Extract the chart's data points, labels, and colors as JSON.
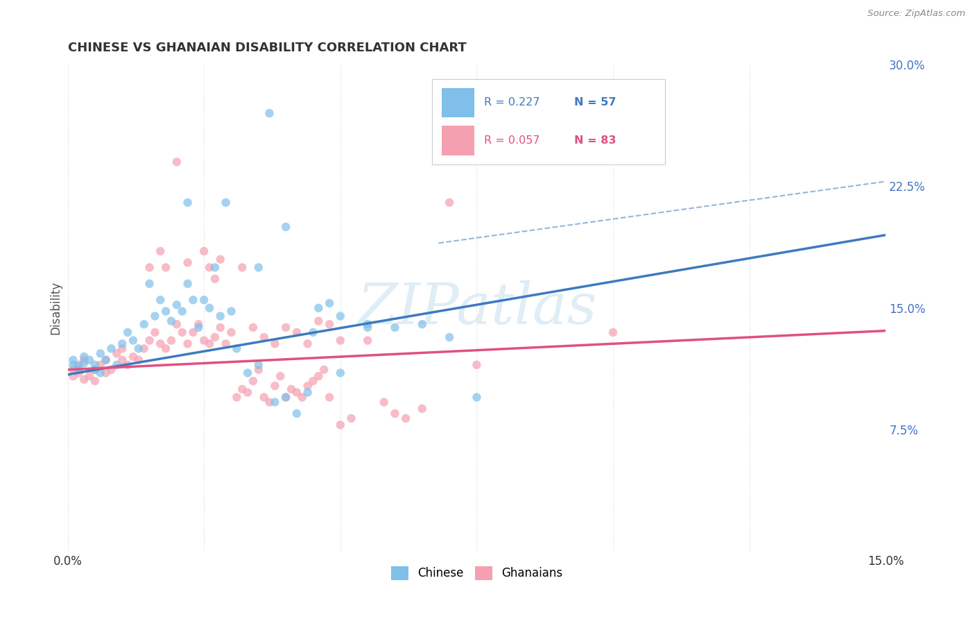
{
  "title": "CHINESE VS GHANAIAN DISABILITY CORRELATION CHART",
  "source": "Source: ZipAtlas.com",
  "ylabel": "Disability",
  "xlim": [
    0.0,
    0.15
  ],
  "ylim": [
    0.0,
    0.3
  ],
  "ytick_vals": [
    0.075,
    0.15,
    0.225,
    0.3
  ],
  "ytick_labels": [
    "7.5%",
    "15.0%",
    "22.5%",
    "30.0%"
  ],
  "xtick_vals": [
    0.0,
    0.025,
    0.05,
    0.075,
    0.1,
    0.125,
    0.15
  ],
  "xtick_labels": [
    "0.0%",
    "",
    "",
    "",
    "",
    "",
    "15.0%"
  ],
  "legend_R_chinese": "R = 0.227",
  "legend_N_chinese": "N = 57",
  "legend_R_ghanaian": "R = 0.057",
  "legend_N_ghanaian": "N = 83",
  "chinese_color": "#7fbfea",
  "ghanaian_color": "#f4a0b0",
  "chinese_line_color": "#3d7abf",
  "ghanaian_line_color": "#e05080",
  "chinese_scatter": [
    [
      0.001,
      0.115
    ],
    [
      0.001,
      0.118
    ],
    [
      0.002,
      0.114
    ],
    [
      0.002,
      0.112
    ],
    [
      0.003,
      0.116
    ],
    [
      0.003,
      0.12
    ],
    [
      0.004,
      0.118
    ],
    [
      0.005,
      0.115
    ],
    [
      0.005,
      0.112
    ],
    [
      0.006,
      0.122
    ],
    [
      0.006,
      0.11
    ],
    [
      0.007,
      0.118
    ],
    [
      0.008,
      0.125
    ],
    [
      0.009,
      0.115
    ],
    [
      0.01,
      0.128
    ],
    [
      0.011,
      0.135
    ],
    [
      0.012,
      0.13
    ],
    [
      0.013,
      0.125
    ],
    [
      0.014,
      0.14
    ],
    [
      0.015,
      0.165
    ],
    [
      0.016,
      0.145
    ],
    [
      0.017,
      0.155
    ],
    [
      0.018,
      0.148
    ],
    [
      0.019,
      0.142
    ],
    [
      0.02,
      0.152
    ],
    [
      0.021,
      0.148
    ],
    [
      0.022,
      0.165
    ],
    [
      0.022,
      0.215
    ],
    [
      0.023,
      0.155
    ],
    [
      0.024,
      0.138
    ],
    [
      0.025,
      0.155
    ],
    [
      0.026,
      0.15
    ],
    [
      0.027,
      0.175
    ],
    [
      0.028,
      0.145
    ],
    [
      0.029,
      0.215
    ],
    [
      0.03,
      0.148
    ],
    [
      0.031,
      0.125
    ],
    [
      0.033,
      0.11
    ],
    [
      0.035,
      0.115
    ],
    [
      0.037,
      0.27
    ],
    [
      0.038,
      0.092
    ],
    [
      0.04,
      0.095
    ],
    [
      0.042,
      0.085
    ],
    [
      0.044,
      0.098
    ],
    [
      0.046,
      0.15
    ],
    [
      0.048,
      0.153
    ],
    [
      0.05,
      0.11
    ],
    [
      0.055,
      0.138
    ],
    [
      0.06,
      0.138
    ],
    [
      0.065,
      0.14
    ],
    [
      0.07,
      0.132
    ],
    [
      0.075,
      0.095
    ],
    [
      0.035,
      0.175
    ],
    [
      0.04,
      0.2
    ],
    [
      0.045,
      0.135
    ],
    [
      0.05,
      0.145
    ],
    [
      0.055,
      0.14
    ]
  ],
  "ghanaian_scatter": [
    [
      0.001,
      0.112
    ],
    [
      0.001,
      0.108
    ],
    [
      0.002,
      0.115
    ],
    [
      0.002,
      0.11
    ],
    [
      0.003,
      0.106
    ],
    [
      0.003,
      0.118
    ],
    [
      0.004,
      0.108
    ],
    [
      0.005,
      0.112
    ],
    [
      0.005,
      0.105
    ],
    [
      0.006,
      0.115
    ],
    [
      0.007,
      0.118
    ],
    [
      0.007,
      0.11
    ],
    [
      0.008,
      0.112
    ],
    [
      0.009,
      0.122
    ],
    [
      0.01,
      0.118
    ],
    [
      0.01,
      0.125
    ],
    [
      0.011,
      0.115
    ],
    [
      0.012,
      0.12
    ],
    [
      0.013,
      0.118
    ],
    [
      0.014,
      0.125
    ],
    [
      0.015,
      0.13
    ],
    [
      0.016,
      0.135
    ],
    [
      0.017,
      0.128
    ],
    [
      0.018,
      0.125
    ],
    [
      0.018,
      0.175
    ],
    [
      0.019,
      0.13
    ],
    [
      0.02,
      0.14
    ],
    [
      0.02,
      0.24
    ],
    [
      0.021,
      0.135
    ],
    [
      0.022,
      0.128
    ],
    [
      0.022,
      0.178
    ],
    [
      0.023,
      0.135
    ],
    [
      0.024,
      0.14
    ],
    [
      0.025,
      0.13
    ],
    [
      0.025,
      0.185
    ],
    [
      0.026,
      0.128
    ],
    [
      0.026,
      0.175
    ],
    [
      0.027,
      0.132
    ],
    [
      0.027,
      0.168
    ],
    [
      0.028,
      0.138
    ],
    [
      0.028,
      0.18
    ],
    [
      0.029,
      0.128
    ],
    [
      0.03,
      0.135
    ],
    [
      0.031,
      0.095
    ],
    [
      0.032,
      0.1
    ],
    [
      0.032,
      0.175
    ],
    [
      0.033,
      0.098
    ],
    [
      0.034,
      0.105
    ],
    [
      0.035,
      0.112
    ],
    [
      0.036,
      0.095
    ],
    [
      0.037,
      0.092
    ],
    [
      0.038,
      0.102
    ],
    [
      0.039,
      0.108
    ],
    [
      0.04,
      0.095
    ],
    [
      0.041,
      0.1
    ],
    [
      0.042,
      0.098
    ],
    [
      0.043,
      0.095
    ],
    [
      0.044,
      0.102
    ],
    [
      0.045,
      0.105
    ],
    [
      0.046,
      0.108
    ],
    [
      0.047,
      0.112
    ],
    [
      0.048,
      0.095
    ],
    [
      0.05,
      0.078
    ],
    [
      0.052,
      0.082
    ],
    [
      0.055,
      0.13
    ],
    [
      0.058,
      0.092
    ],
    [
      0.06,
      0.085
    ],
    [
      0.062,
      0.082
    ],
    [
      0.065,
      0.088
    ],
    [
      0.07,
      0.215
    ],
    [
      0.075,
      0.115
    ],
    [
      0.1,
      0.135
    ],
    [
      0.034,
      0.138
    ],
    [
      0.036,
      0.132
    ],
    [
      0.038,
      0.128
    ],
    [
      0.04,
      0.138
    ],
    [
      0.042,
      0.135
    ],
    [
      0.044,
      0.128
    ],
    [
      0.046,
      0.142
    ],
    [
      0.048,
      0.14
    ],
    [
      0.05,
      0.13
    ],
    [
      0.015,
      0.175
    ],
    [
      0.017,
      0.185
    ]
  ],
  "chinese_regression": [
    0.0,
    0.109,
    0.15,
    0.195
  ],
  "ghanaian_regression": [
    0.0,
    0.112,
    0.15,
    0.136
  ],
  "chinese_ci_dashed": [
    0.068,
    0.19,
    0.15,
    0.228
  ],
  "watermark_text": "ZIPatlas",
  "watermark_color": "#c5dff0",
  "background_color": "#ffffff",
  "grid_color": "#e0e0e0",
  "title_color": "#333333",
  "source_color": "#888888",
  "ylabel_color": "#555555",
  "right_tick_color": "#4472c4"
}
